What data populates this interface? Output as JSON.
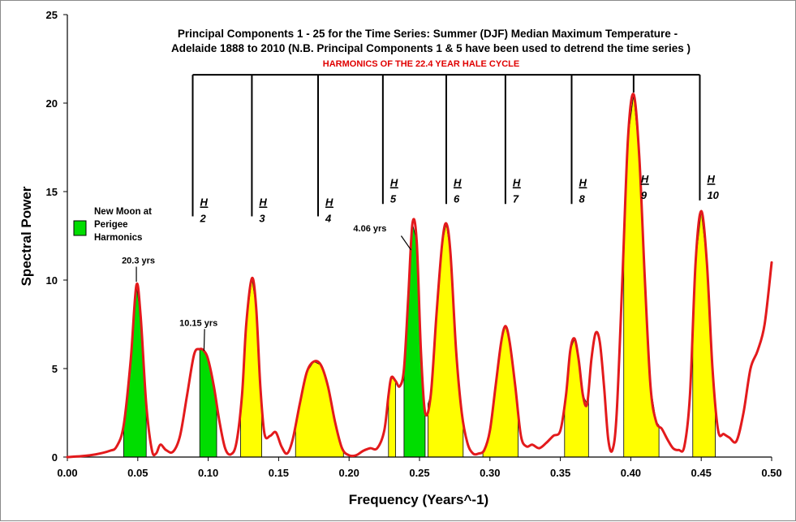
{
  "chart_data": {
    "type": "line",
    "title_lines": [
      "Principal Components 1 - 25 for the Time Series: Summer (DJF) Median Maximum Temperature  -",
      "Adelaide  1888 to 2010 (N.B. Principal Components 1 & 5 have been used to detrend the time series )"
    ],
    "subtitle": "HARMONICS OF THE 22.4 YEAR HALE CYCLE",
    "xlabel": "Frequency (Years^-1)",
    "ylabel": "Spectral Power",
    "xlim": [
      0,
      0.5
    ],
    "ylim": [
      0,
      25
    ],
    "x_ticks": [
      "0.00",
      "0.05",
      "0.10",
      "0.15",
      "0.20",
      "0.25",
      "0.30",
      "0.35",
      "0.40",
      "0.45",
      "0.50"
    ],
    "y_ticks": [
      "0",
      "5",
      "10",
      "15",
      "20",
      "25"
    ],
    "series": [
      {
        "name": "Spectral Power",
        "color": "#e31a1c",
        "x": [
          0.0,
          0.01,
          0.02,
          0.03,
          0.035,
          0.04,
          0.045,
          0.049,
          0.052,
          0.056,
          0.06,
          0.063,
          0.066,
          0.07,
          0.075,
          0.08,
          0.085,
          0.09,
          0.094,
          0.097,
          0.1,
          0.104,
          0.108,
          0.112,
          0.116,
          0.12,
          0.124,
          0.127,
          0.131,
          0.134,
          0.137,
          0.14,
          0.144,
          0.148,
          0.152,
          0.156,
          0.16,
          0.165,
          0.17,
          0.175,
          0.18,
          0.185,
          0.19,
          0.195,
          0.2,
          0.205,
          0.21,
          0.215,
          0.22,
          0.225,
          0.228,
          0.23,
          0.233,
          0.236,
          0.239,
          0.242,
          0.245,
          0.248,
          0.251,
          0.254,
          0.258,
          0.262,
          0.266,
          0.269,
          0.272,
          0.276,
          0.28,
          0.284,
          0.288,
          0.292,
          0.296,
          0.3,
          0.304,
          0.308,
          0.311,
          0.314,
          0.318,
          0.322,
          0.326,
          0.33,
          0.335,
          0.34,
          0.345,
          0.35,
          0.354,
          0.357,
          0.36,
          0.363,
          0.366,
          0.369,
          0.372,
          0.375,
          0.378,
          0.381,
          0.384,
          0.387,
          0.39,
          0.394,
          0.398,
          0.402,
          0.406,
          0.41,
          0.414,
          0.418,
          0.422,
          0.426,
          0.43,
          0.434,
          0.438,
          0.442,
          0.446,
          0.45,
          0.454,
          0.458,
          0.462,
          0.466,
          0.47,
          0.475,
          0.48,
          0.485,
          0.49,
          0.495,
          0.5
        ],
        "y": [
          0.0,
          0.05,
          0.15,
          0.35,
          0.6,
          1.8,
          5.5,
          9.7,
          8.0,
          3.0,
          0.4,
          0.2,
          0.7,
          0.4,
          0.3,
          1.2,
          3.5,
          5.8,
          6.1,
          6.0,
          5.5,
          4.0,
          2.0,
          0.5,
          0.15,
          0.8,
          3.5,
          7.5,
          10.1,
          8.5,
          4.0,
          1.3,
          1.2,
          1.4,
          0.6,
          0.2,
          1.0,
          3.0,
          4.8,
          5.4,
          5.2,
          4.0,
          2.0,
          0.5,
          0.1,
          0.1,
          0.35,
          0.5,
          0.5,
          1.5,
          3.5,
          4.5,
          4.3,
          4.0,
          5.0,
          9.0,
          13.2,
          12.2,
          6.0,
          2.5,
          3.5,
          8.0,
          12.0,
          13.2,
          11.5,
          6.0,
          2.5,
          0.8,
          0.2,
          0.2,
          0.4,
          1.5,
          4.0,
          6.5,
          7.4,
          6.5,
          4.0,
          1.2,
          0.6,
          0.7,
          0.5,
          0.8,
          1.2,
          1.5,
          3.5,
          6.0,
          6.7,
          5.5,
          3.5,
          3.0,
          5.5,
          7.0,
          6.5,
          4.0,
          1.0,
          0.4,
          2.5,
          10.0,
          18.0,
          20.5,
          17.0,
          10.0,
          4.0,
          2.0,
          1.6,
          1.0,
          0.5,
          0.4,
          0.6,
          3.5,
          11.0,
          13.9,
          11.0,
          5.0,
          1.5,
          1.3,
          1.1,
          0.9,
          2.5,
          5.0,
          6.0,
          7.5,
          11.0
        ]
      }
    ],
    "shaded_bands": {
      "new_moon_perigee": [
        [
          0.04,
          0.056
        ],
        [
          0.094,
          0.106
        ],
        [
          0.239,
          0.254
        ]
      ],
      "hale_harmonics": [
        [
          0.123,
          0.138
        ],
        [
          0.162,
          0.196
        ],
        [
          0.228,
          0.233
        ],
        [
          0.256,
          0.281
        ],
        [
          0.295,
          0.32
        ],
        [
          0.353,
          0.37
        ],
        [
          0.395,
          0.42
        ],
        [
          0.444,
          0.46
        ]
      ]
    },
    "harmonics": {
      "bar_top_y": 21.6,
      "labels": [
        {
          "h": "H",
          "n": "2",
          "x": 0.089,
          "y_top": 14.2,
          "line_bottom": 13.6
        },
        {
          "h": "H",
          "n": "3",
          "x": 0.131,
          "y_top": 14.2,
          "line_bottom": 13.6
        },
        {
          "h": "H",
          "n": "4",
          "x": 0.178,
          "y_top": 14.2,
          "line_bottom": 13.6
        },
        {
          "h": "H",
          "n": "5",
          "x": 0.224,
          "y_top": 15.3,
          "line_bottom": 14.3
        },
        {
          "h": "H",
          "n": "6",
          "x": 0.269,
          "y_top": 15.3,
          "line_bottom": 14.3
        },
        {
          "h": "H",
          "n": "7",
          "x": 0.311,
          "y_top": 15.3,
          "line_bottom": 14.3
        },
        {
          "h": "H",
          "n": "8",
          "x": 0.358,
          "y_top": 15.3,
          "line_bottom": 14.3
        },
        {
          "h": "H",
          "n": "9",
          "x": 0.402,
          "y_top": 15.5,
          "line_bottom": 20.6
        },
        {
          "h": "H",
          "n": "10",
          "x": 0.449,
          "y_top": 15.5,
          "line_bottom": 14.5
        }
      ]
    },
    "annotations": [
      {
        "text": "20.3 yrs",
        "x": 0.049,
        "y": 10.8
      },
      {
        "text": "10.15 yrs",
        "x": 0.098,
        "y": 6.5
      },
      {
        "text": "4.06 yrs",
        "x": 0.243,
        "y": 12.8
      }
    ],
    "legend": {
      "label_lines": [
        "New Moon at",
        "Perigee",
        "Harmonics"
      ],
      "placement": "left",
      "color": "#00dd00"
    },
    "colors": {
      "line": "#e31a1c",
      "new_moon_fill": "#00dd00",
      "harmonic_fill": "#ffff00",
      "subtitle": "#e00000"
    }
  }
}
